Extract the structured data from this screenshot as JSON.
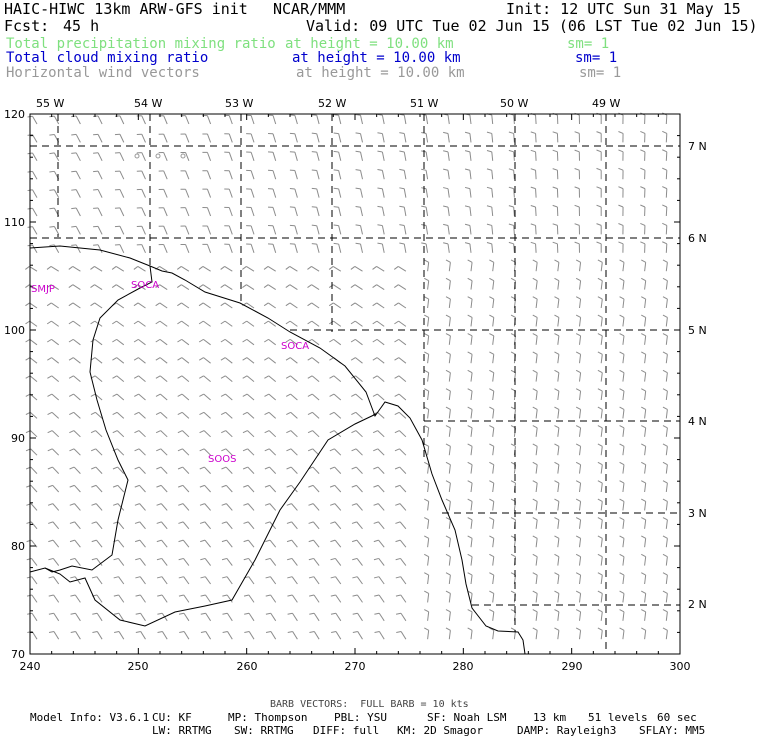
{
  "header": {
    "model_title": "HAIC-HIWC 13km ARW-GFS init",
    "org": "NCAR/MMM",
    "init": "Init: 12 UTC Sun 31 May 15",
    "fcst_label": "Fcst:",
    "fcst_value": "45 h",
    "valid": "Valid: 09 UTC Tue 02 Jun 15 (06 LST Tue 02 Jun 15)"
  },
  "fields": [
    {
      "name": "Total precipitation mixing ratio",
      "height": "at height = 10.00 km",
      "sm": "sm= 1",
      "color": "#7fe07f"
    },
    {
      "name": "Total cloud mixing ratio",
      "height": "at height = 10.00 km",
      "sm": "sm= 1",
      "color": "#0000cc"
    },
    {
      "name": "Horizontal wind vectors",
      "height": "at height = 10.00 km",
      "sm": "sm= 1",
      "color": "#999999"
    }
  ],
  "map": {
    "x_ticks": [
      "240",
      "250",
      "260",
      "270",
      "280",
      "290",
      "300"
    ],
    "y_ticks": [
      "70",
      "80",
      "90",
      "100",
      "110",
      "120"
    ],
    "lon_labels": [
      "55 W",
      "54 W",
      "53 W",
      "52 W",
      "51 W",
      "50 W",
      "49 W"
    ],
    "lat_labels": [
      "7 N",
      "6 N",
      "5 N",
      "4 N",
      "3 N",
      "2 N"
    ],
    "stations": [
      "SMJP",
      "SOCA",
      "SOCA",
      "SOOS"
    ],
    "barb_color": "#8c8c8c"
  },
  "footer": {
    "barb_note": "BARB VECTORS:  FULL BARB = 10 kts",
    "model_info": "Model Info: V3.6.1",
    "cu": "CU: KF",
    "mp": "MP: Thompson",
    "pbl": "PBL: YSU",
    "sf": "SF: Noah LSM",
    "res": "13 km",
    "levels": "51 levels",
    "dt": "60 sec",
    "lw": "LW: RRTMG",
    "sw": "SW: RRTMG",
    "diff": "DIFF: full",
    "km": "KM: 2D Smagor",
    "damp": "DAMP: Rayleigh3",
    "sflay": "SFLAY: MM5"
  }
}
